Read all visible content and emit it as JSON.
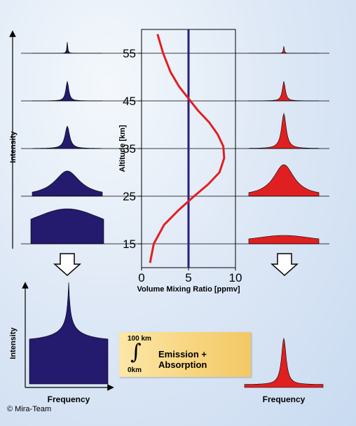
{
  "chart_data": {
    "type": "line",
    "xlabel": "Volume Mixing Ratio [ppmv]",
    "ylabel": "Altitude [km]",
    "xlim": [
      0,
      10
    ],
    "ylim": [
      10,
      60
    ],
    "x_ticks": [
      "0",
      "5",
      "10"
    ],
    "y_ticks": [
      "15",
      "25",
      "35",
      "45",
      "55"
    ],
    "series": [
      {
        "color": "#e02020",
        "x": [
          1.7,
          2.3,
          3.1,
          4.0,
          5.0,
          6.0,
          7.2,
          8.1,
          8.7,
          8.8,
          8.3,
          7.1,
          5.6,
          3.9,
          2.4,
          1.3,
          0.9
        ],
        "y": [
          59,
          55,
          51,
          48,
          45.5,
          43,
          40.5,
          38,
          35.5,
          33,
          30,
          27.5,
          25,
          22,
          19,
          15,
          11
        ]
      },
      {
        "color": "#2a1f7a",
        "x": [
          5,
          5
        ],
        "y": [
          10,
          60
        ]
      }
    ]
  },
  "left_panel": {
    "y_label": "Intensity",
    "color": "#241a6e"
  },
  "right_panel": {
    "color": "#e02020"
  },
  "bottom_left": {
    "y_label": "Intensity",
    "x_label": "Frequency"
  },
  "bottom_right": {
    "x_label": "Frequency"
  },
  "integral": {
    "upper": "100 km",
    "lower": "0km",
    "text": "Emission + Absorption"
  },
  "copyright": "© Mira-Team"
}
